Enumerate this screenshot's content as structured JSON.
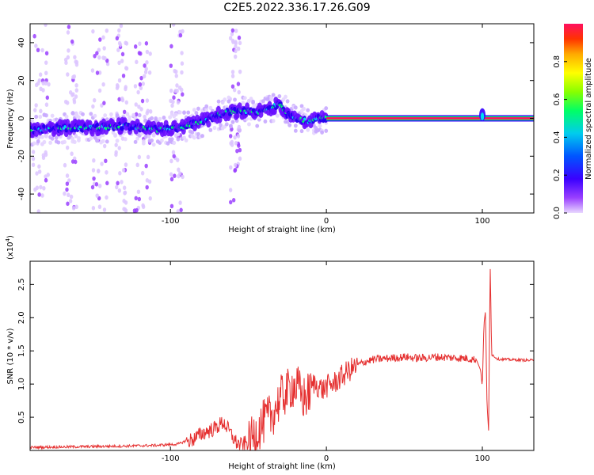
{
  "title": "C2E5.2022.336.17.26.G09",
  "colors": {
    "signal": "#e53030",
    "spectrogram_core": "#ff2060",
    "spectrogram_edge": "#7a1cff"
  },
  "chart_data": [
    {
      "type": "heatmap",
      "xlabel": "Height of straight line (km)",
      "ylabel": "Frequency (Hz)",
      "xlim": [
        -190,
        133
      ],
      "ylim": [
        -50,
        50
      ],
      "xticks": [
        "-100",
        "0",
        "100"
      ],
      "yticks": [
        "40",
        "20",
        "0",
        "-20",
        "-40"
      ],
      "colorbar": {
        "label": "Normalized spectral amplitude",
        "range": [
          0.0,
          1.0
        ],
        "ticks": [
          "0.0",
          "0.2",
          "0.4",
          "0.6",
          "0.8"
        ],
        "colormap": [
          "#d8b8ff",
          "#8a2be2",
          "#3300ff",
          "#0066ff",
          "#00ddee",
          "#00ff66",
          "#88ff00",
          "#ffff00",
          "#ffaa00",
          "#ff3300",
          "#ff1060"
        ]
      },
      "ridge": {
        "description_points_x": [
          -188,
          -170,
          -150,
          -130,
          -110,
          -95,
          -85,
          -75,
          -65,
          -55,
          -45,
          -35,
          -30,
          -25,
          -20,
          -15,
          -10,
          -5,
          0,
          100,
          133
        ],
        "description_points_y": [
          -6,
          -5,
          -5,
          -4,
          -6,
          -5,
          -3,
          0,
          3,
          4,
          3,
          6,
          8,
          2,
          0,
          -1,
          -2,
          0,
          0,
          0,
          0
        ],
        "steady_line_start_x": 0,
        "steady_line_freq": 0
      }
    },
    {
      "type": "line",
      "xlabel": "Height of straight line (km)",
      "ylabel": "SNR (10 * v/v)",
      "y_multiplier_label": "(x10",
      "y_multiplier_exp": "4",
      "y_multiplier_close": ")",
      "xlim": [
        -190,
        133
      ],
      "ylim": [
        0,
        2.85
      ],
      "xticks": [
        "-100",
        "0",
        "100"
      ],
      "yticks": [
        "0.5",
        "1.0",
        "1.5",
        "2.0",
        "2.5"
      ],
      "series": [
        {
          "x": [
            -190,
            -160,
            -130,
            -110,
            -95,
            -85,
            -78,
            -72,
            -66,
            -62,
            -58,
            -55,
            -50,
            -45,
            -40,
            -35,
            -32,
            -28,
            -25,
            -22,
            -18,
            -15,
            -12,
            -8,
            -5,
            -2,
            0,
            5,
            10,
            15,
            20,
            25,
            30,
            40,
            50,
            60,
            70,
            80,
            90,
            96,
            99,
            100,
            101,
            102,
            103,
            104,
            105,
            106,
            110,
            120,
            133
          ],
          "y": [
            0.05,
            0.06,
            0.07,
            0.08,
            0.1,
            0.2,
            0.3,
            0.35,
            0.45,
            0.3,
            0.15,
            0.1,
            0.15,
            0.35,
            0.5,
            0.6,
            0.75,
            0.9,
            0.95,
            1.05,
            1.0,
            0.85,
            0.9,
            1.05,
            1.0,
            0.95,
            1.0,
            1.05,
            1.15,
            1.25,
            1.3,
            1.35,
            1.38,
            1.4,
            1.42,
            1.4,
            1.42,
            1.41,
            1.4,
            1.38,
            1.2,
            0.95,
            1.9,
            2.1,
            0.7,
            0.3,
            2.8,
            1.45,
            1.38,
            1.37,
            1.36
          ]
        }
      ]
    }
  ]
}
